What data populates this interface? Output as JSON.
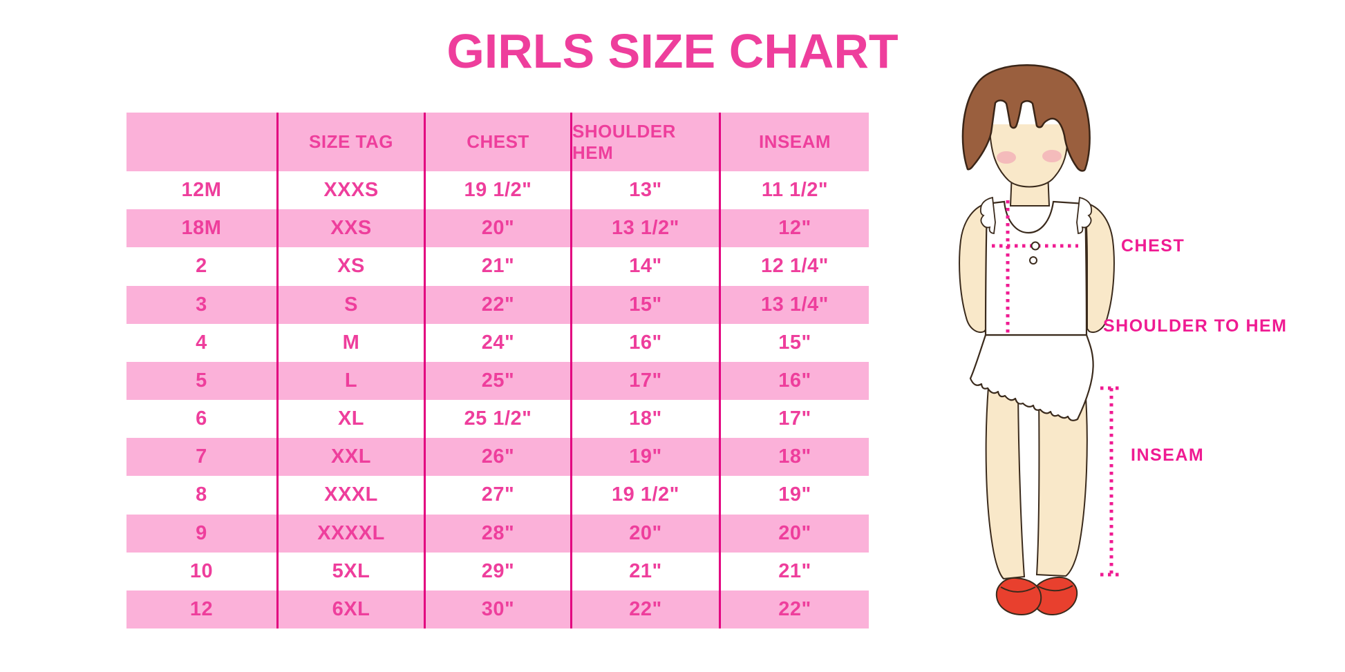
{
  "title": "GIRLS SIZE CHART",
  "colors": {
    "accent_pink": "#ee3e9c",
    "row_pink": "#fbb1d9",
    "divider_pink": "#e2007f",
    "label_pink": "#ef1b92",
    "hair_brown": "#9a5f3e",
    "skin": "#f9e8c9",
    "shoe_red": "#e8402e"
  },
  "diagram": {
    "chest_label": "CHEST",
    "shoulder_to_hem_label": "SHOULDER TO HEM",
    "inseam_label": "INSEAM"
  },
  "chart_data": {
    "type": "table",
    "title": "GIRLS SIZE CHART",
    "columns": [
      "",
      "SIZE TAG",
      "CHEST",
      "SHOULDER HEM",
      "INSEAM"
    ],
    "rows": [
      [
        "12M",
        "XXXS",
        "19 1/2\"",
        "13\"",
        "11 1/2\""
      ],
      [
        "18M",
        "XXS",
        "20\"",
        "13 1/2\"",
        "12\""
      ],
      [
        "2",
        "XS",
        "21\"",
        "14\"",
        "12 1/4\""
      ],
      [
        "3",
        "S",
        "22\"",
        "15\"",
        "13 1/4\""
      ],
      [
        "4",
        "M",
        "24\"",
        "16\"",
        "15\""
      ],
      [
        "5",
        "L",
        "25\"",
        "17\"",
        "16\""
      ],
      [
        "6",
        "XL",
        "25 1/2\"",
        "18\"",
        "17\""
      ],
      [
        "7",
        "XXL",
        "26\"",
        "19\"",
        "18\""
      ],
      [
        "8",
        "XXXL",
        "27\"",
        "19 1/2\"",
        "19\""
      ],
      [
        "9",
        "XXXXL",
        "28\"",
        "20\"",
        "20\""
      ],
      [
        "10",
        "5XL",
        "29\"",
        "21\"",
        "21\""
      ],
      [
        "12",
        "6XL",
        "30\"",
        "22\"",
        "22\""
      ]
    ],
    "layout": {
      "row_striping": "header and even data rows pink, others white",
      "grid": "vertical magenta column dividers only, no horizontal lines"
    }
  }
}
